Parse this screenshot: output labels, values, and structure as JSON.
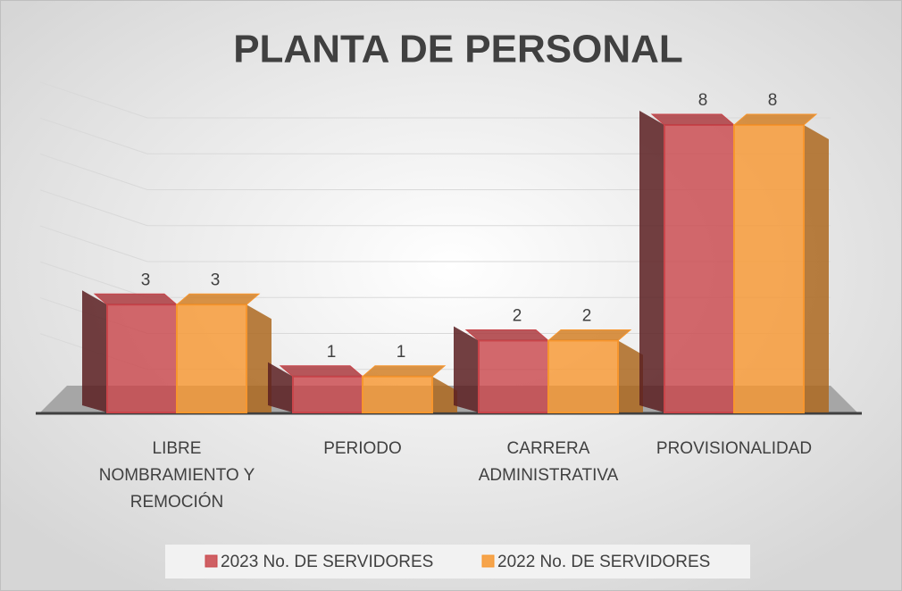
{
  "chart_data": {
    "type": "bar3d",
    "title": "PLANTA DE PERSONAL",
    "categories": [
      "LIBRE NOMBRAMIENTO Y REMOCIÓN",
      "PERIODO",
      "CARRERA ADMINISTRATIVA",
      "PROVISIONALIDAD"
    ],
    "series": [
      {
        "name": "2023 No. DE SERVIDORES",
        "color": "#c9454a",
        "values": [
          3,
          1,
          2,
          8
        ]
      },
      {
        "name": "2022 No. DE SERVIDORES",
        "color": "#f7962e",
        "values": [
          3,
          1,
          2,
          8
        ]
      }
    ],
    "grid": true,
    "legend": "bottom"
  }
}
